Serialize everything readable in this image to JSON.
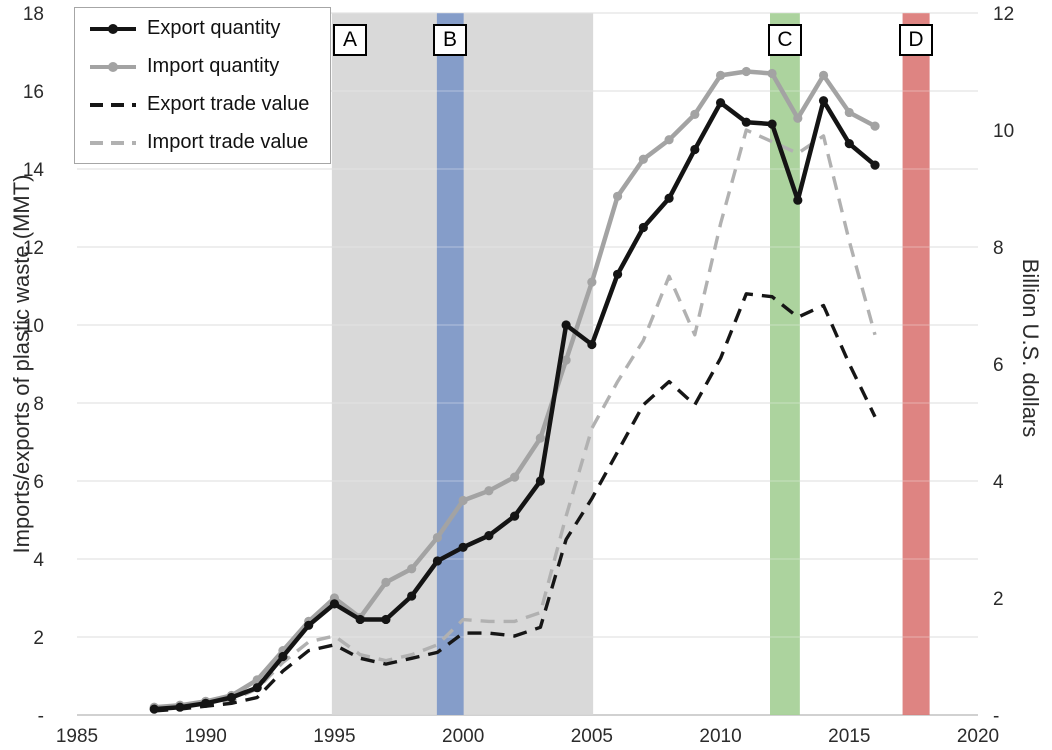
{
  "figure": {
    "left_axis_title": "Imports/exports of plastic waste (MMT)",
    "right_axis_title": "Billion U.S. dollars"
  },
  "chart_data": {
    "type": "line",
    "x_range": [
      1985,
      2020
    ],
    "left_ylim": [
      0,
      18
    ],
    "right_ylim": [
      0,
      12
    ],
    "grid": "horizontal",
    "legend_position": "top-left",
    "x": [
      1988,
      1989,
      1990,
      1991,
      1992,
      1993,
      1994,
      1995,
      1996,
      1997,
      1998,
      1999,
      2000,
      2001,
      2002,
      2003,
      2004,
      2005,
      2006,
      2007,
      2008,
      2009,
      2010,
      2011,
      2012,
      2013,
      2014,
      2015,
      2016
    ],
    "series": [
      {
        "name": "Export quantity",
        "axis": "left",
        "unit": "MMT",
        "style": "solid",
        "marker": true,
        "color": "#141414",
        "values": [
          0.15,
          0.2,
          0.3,
          0.45,
          0.7,
          1.5,
          2.3,
          2.85,
          2.45,
          2.45,
          3.05,
          3.95,
          4.3,
          4.6,
          5.1,
          6.0,
          10.0,
          9.5,
          11.3,
          12.5,
          13.25,
          14.5,
          15.7,
          15.2,
          15.15,
          13.2,
          15.75,
          14.65,
          14.1
        ]
      },
      {
        "name": "Import quantity",
        "axis": "left",
        "unit": "MMT",
        "style": "solid",
        "marker": true,
        "color": "#a3a3a3",
        "values": [
          0.2,
          0.25,
          0.35,
          0.5,
          0.9,
          1.65,
          2.4,
          3.0,
          2.5,
          3.4,
          3.75,
          4.55,
          5.5,
          5.75,
          6.1,
          7.1,
          9.1,
          11.1,
          13.3,
          14.25,
          14.75,
          15.4,
          16.4,
          16.5,
          16.45,
          15.3,
          16.4,
          15.45,
          15.1
        ]
      },
      {
        "name": "Export trade value",
        "axis": "right",
        "unit": "Billion USD",
        "style": "dashed",
        "marker": false,
        "color": "#161616",
        "values": [
          0.07,
          0.1,
          0.15,
          0.2,
          0.3,
          0.75,
          1.1,
          1.2,
          0.97,
          0.87,
          0.97,
          1.07,
          1.4,
          1.4,
          1.35,
          1.5,
          3.0,
          3.7,
          4.5,
          5.3,
          5.7,
          5.3,
          6.1,
          7.2,
          7.15,
          6.8,
          7.0,
          6.0,
          5.1
        ]
      },
      {
        "name": "Import trade value",
        "axis": "right",
        "unit": "Billion USD",
        "style": "dashed",
        "marker": false,
        "color": "#b1b1b1",
        "values": [
          0.1,
          0.12,
          0.18,
          0.25,
          0.45,
          0.9,
          1.25,
          1.35,
          1.03,
          0.93,
          1.03,
          1.2,
          1.63,
          1.6,
          1.6,
          1.75,
          3.4,
          4.9,
          5.7,
          6.4,
          7.5,
          6.5,
          8.4,
          10.0,
          9.8,
          9.6,
          9.9,
          8.1,
          6.5
        ]
      }
    ],
    "bands": [
      {
        "label": "A",
        "from": 1994.9,
        "to": 2005.05,
        "color": "#d6d6d6",
        "label_year": 1995.6
      },
      {
        "label": "B",
        "from": 1998.98,
        "to": 2000.02,
        "color": "#7e98c8",
        "label_year": 1999.5
      },
      {
        "label": "C",
        "from": 2011.92,
        "to": 2013.08,
        "color": "#a5cf96",
        "label_year": 2012.5
      },
      {
        "label": "D",
        "from": 2017.07,
        "to": 2018.12,
        "color": "#db7a77",
        "label_year": 2017.6
      }
    ],
    "left_ticks": [
      {
        "value": 18,
        "label": "18"
      },
      {
        "value": 16,
        "label": "16"
      },
      {
        "value": 14,
        "label": "14"
      },
      {
        "value": 12,
        "label": "12"
      },
      {
        "value": 10,
        "label": "10"
      },
      {
        "value": 8,
        "label": "8"
      },
      {
        "value": 6,
        "label": "6"
      },
      {
        "value": 4,
        "label": "4"
      },
      {
        "value": 2,
        "label": "2"
      },
      {
        "value": 0,
        "label": "-"
      }
    ],
    "right_ticks": [
      {
        "value": 12,
        "label": "12"
      },
      {
        "value": 10,
        "label": "10"
      },
      {
        "value": 8,
        "label": "8"
      },
      {
        "value": 6,
        "label": "6"
      },
      {
        "value": 4,
        "label": "4"
      },
      {
        "value": 2,
        "label": "2"
      },
      {
        "value": 0,
        "label": "-"
      }
    ],
    "x_ticks": [
      {
        "value": 1985,
        "label": "1985"
      },
      {
        "value": 1990,
        "label": "1990"
      },
      {
        "value": 1995,
        "label": "1995"
      },
      {
        "value": 2000,
        "label": "2000"
      },
      {
        "value": 2005,
        "label": "2005"
      },
      {
        "value": 2010,
        "label": "2010"
      },
      {
        "value": 2015,
        "label": "2015"
      },
      {
        "value": 2020,
        "label": "2020"
      }
    ]
  }
}
